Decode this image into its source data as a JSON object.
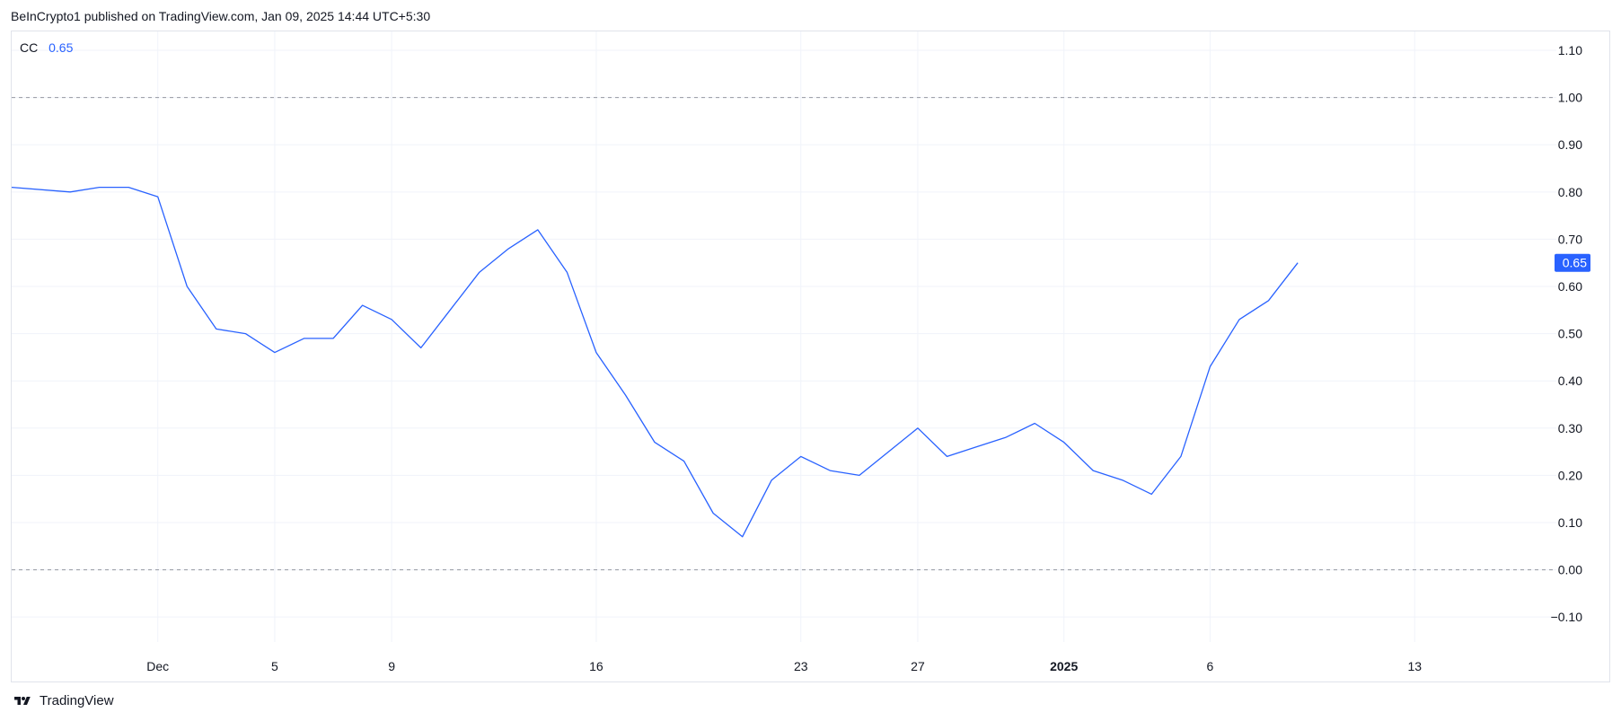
{
  "header": {
    "text": "BeInCrypto1 published on TradingView.com, Jan 09, 2025 14:44 UTC+5:30"
  },
  "legend": {
    "symbol": "CC",
    "value": "0.65"
  },
  "footer": {
    "brand": "TradingView",
    "logo_icon": "tradingview-logo-icon"
  },
  "colors": {
    "line": "#2962ff",
    "grid": "#f0f3fa",
    "dashed": "#9598a1",
    "badge": "#2962ff",
    "axis_text": "#131722"
  },
  "chart_data": {
    "type": "line",
    "title": "",
    "xlabel": "",
    "ylabel": "",
    "ylim": [
      -0.17,
      1.14
    ],
    "y_ticks": [
      1.1,
      1.0,
      0.9,
      0.8,
      0.7,
      0.6,
      0.5,
      0.4,
      0.3,
      0.2,
      0.1,
      0.0,
      -0.1
    ],
    "y_tick_labels": [
      "1.10",
      "1.00",
      "0.90",
      "0.80",
      "0.70",
      "0.60",
      "0.50",
      "0.40",
      "0.30",
      "0.20",
      "0.10",
      "0.00",
      "−0.10"
    ],
    "x_range": [
      "2024-11-26",
      "2025-01-18"
    ],
    "x_ticks": [
      {
        "date": "2024-12-01",
        "label": "Dec",
        "bold": false
      },
      {
        "date": "2024-12-05",
        "label": "5",
        "bold": false
      },
      {
        "date": "2024-12-09",
        "label": "9",
        "bold": false
      },
      {
        "date": "2024-12-16",
        "label": "16",
        "bold": false
      },
      {
        "date": "2024-12-23",
        "label": "23",
        "bold": false
      },
      {
        "date": "2024-12-27",
        "label": "27",
        "bold": false
      },
      {
        "date": "2025-01-01",
        "label": "2025",
        "bold": true
      },
      {
        "date": "2025-01-06",
        "label": "6",
        "bold": false
      },
      {
        "date": "2025-01-13",
        "label": "13",
        "bold": false
      }
    ],
    "dashed_levels": [
      1.0,
      0.0
    ],
    "last_value_label": "0.65",
    "series": [
      {
        "points": [
          [
            "2024-11-26",
            0.81
          ],
          [
            "2024-11-28",
            0.8
          ],
          [
            "2024-11-29",
            0.81
          ],
          [
            "2024-11-30",
            0.81
          ],
          [
            "2024-12-01",
            0.79
          ],
          [
            "2024-12-02",
            0.6
          ],
          [
            "2024-12-03",
            0.51
          ],
          [
            "2024-12-04",
            0.5
          ],
          [
            "2024-12-05",
            0.46
          ],
          [
            "2024-12-06",
            0.49
          ],
          [
            "2024-12-07",
            0.49
          ],
          [
            "2024-12-08",
            0.56
          ],
          [
            "2024-12-09",
            0.53
          ],
          [
            "2024-12-10",
            0.47
          ],
          [
            "2024-12-11",
            0.55
          ],
          [
            "2024-12-12",
            0.63
          ],
          [
            "2024-12-13",
            0.68
          ],
          [
            "2024-12-14",
            0.72
          ],
          [
            "2024-12-15",
            0.63
          ],
          [
            "2024-12-16",
            0.46
          ],
          [
            "2024-12-17",
            0.37
          ],
          [
            "2024-12-18",
            0.27
          ],
          [
            "2024-12-19",
            0.23
          ],
          [
            "2024-12-20",
            0.12
          ],
          [
            "2024-12-21",
            0.07
          ],
          [
            "2024-12-22",
            0.19
          ],
          [
            "2024-12-23",
            0.24
          ],
          [
            "2024-12-24",
            0.21
          ],
          [
            "2024-12-25",
            0.2
          ],
          [
            "2024-12-26",
            0.25
          ],
          [
            "2024-12-27",
            0.3
          ],
          [
            "2024-12-28",
            0.24
          ],
          [
            "2024-12-29",
            0.26
          ],
          [
            "2024-12-30",
            0.28
          ],
          [
            "2024-12-31",
            0.31
          ],
          [
            "2025-01-01",
            0.27
          ],
          [
            "2025-01-02",
            0.21
          ],
          [
            "2025-01-03",
            0.19
          ],
          [
            "2025-01-04",
            0.16
          ],
          [
            "2025-01-05",
            0.24
          ],
          [
            "2025-01-06",
            0.43
          ],
          [
            "2025-01-07",
            0.53
          ],
          [
            "2025-01-08",
            0.57
          ],
          [
            "2025-01-09",
            0.65
          ]
        ]
      }
    ]
  }
}
